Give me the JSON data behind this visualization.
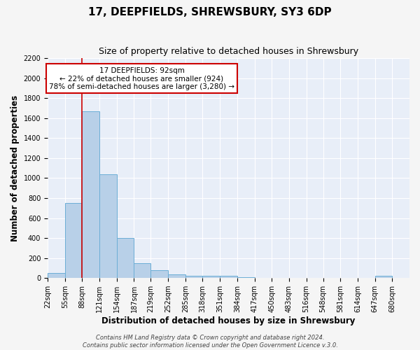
{
  "title": "17, DEEPFIELDS, SHREWSBURY, SY3 6DP",
  "subtitle": "Size of property relative to detached houses in Shrewsbury",
  "xlabel": "Distribution of detached houses by size in Shrewsbury",
  "ylabel": "Number of detached properties",
  "bin_edges": [
    22,
    55,
    88,
    121,
    154,
    187,
    219,
    252,
    285,
    318,
    351,
    384,
    417,
    450,
    483,
    516,
    548,
    581,
    614,
    647,
    680
  ],
  "bin_labels": [
    "22sqm",
    "55sqm",
    "88sqm",
    "121sqm",
    "154sqm",
    "187sqm",
    "219sqm",
    "252sqm",
    "285sqm",
    "318sqm",
    "351sqm",
    "384sqm",
    "417sqm",
    "450sqm",
    "483sqm",
    "516sqm",
    "548sqm",
    "581sqm",
    "614sqm",
    "647sqm",
    "680sqm"
  ],
  "counts": [
    50,
    750,
    1670,
    1040,
    400,
    150,
    80,
    40,
    25,
    20,
    20,
    10,
    5,
    0,
    0,
    0,
    0,
    0,
    0,
    20
  ],
  "bar_color": "#b8d0e8",
  "bar_edge_color": "#6baed6",
  "red_line_x": 88,
  "annotation_text_line1": "17 DEEPFIELDS: 92sqm",
  "annotation_text_line2": "← 22% of detached houses are smaller (924)",
  "annotation_text_line3": "78% of semi-detached houses are larger (3,280) →",
  "annotation_box_color": "#ffffff",
  "annotation_border_color": "#cc0000",
  "red_line_color": "#cc0000",
  "ylim": [
    0,
    2200
  ],
  "yticks": [
    0,
    200,
    400,
    600,
    800,
    1000,
    1200,
    1400,
    1600,
    1800,
    2000,
    2200
  ],
  "footer_line1": "Contains HM Land Registry data © Crown copyright and database right 2024.",
  "footer_line2": "Contains public sector information licensed under the Open Government Licence v.3.0.",
  "plot_bg_color": "#e8eef8",
  "fig_bg_color": "#f5f5f5",
  "grid_color": "#ffffff",
  "title_fontsize": 11,
  "subtitle_fontsize": 9,
  "axis_label_fontsize": 8.5,
  "tick_fontsize": 7,
  "footer_fontsize": 6,
  "annotation_fontsize": 7.5
}
